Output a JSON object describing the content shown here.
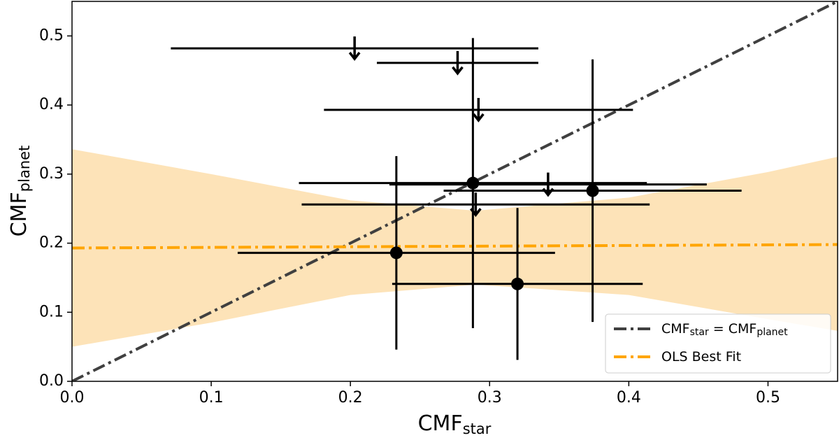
{
  "chart_data": {
    "type": "scatter",
    "x_label": [
      "CMF",
      "star"
    ],
    "y_label": [
      "CMF",
      "planet"
    ],
    "xlim": [
      0,
      0.55
    ],
    "ylim": [
      0,
      0.55
    ],
    "xticks": [
      {
        "value": 0,
        "label": "0.0"
      },
      0.1,
      0.2,
      0.3,
      0.4,
      0.5
    ],
    "yticks": [
      {
        "value": 0,
        "label": "0.0"
      },
      0.1,
      0.2,
      0.3,
      0.4,
      0.5
    ],
    "legend": "lower right",
    "series": [
      {
        "name": [
          "CMF",
          "star",
          " = CMF",
          "planet"
        ],
        "type": "line",
        "color": "#404040",
        "x": [
          0,
          0.55
        ],
        "values": [
          0,
          0.55
        ]
      },
      {
        "name": [
          "OLS Best Fit"
        ],
        "type": "line",
        "color": "#ffa500",
        "x": [
          0,
          0.55
        ],
        "values": [
          0.193,
          0.198
        ],
        "band_color": "#fde3b8",
        "band_x": [
          0,
          0.1,
          0.2,
          0.29,
          0.4,
          0.5,
          0.55
        ],
        "band_upper": [
          0.336,
          0.3,
          0.262,
          0.247,
          0.266,
          0.303,
          0.325
        ],
        "band_lower": [
          0.05,
          0.085,
          0.125,
          0.14,
          0.125,
          0.09,
          0.073
        ]
      },
      {
        "type": "errorbar",
        "color": "#000000",
        "x": [
          0.288,
          0.374,
          0.233,
          0.32
        ],
        "values": [
          0.287,
          0.276,
          0.186,
          0.141
        ],
        "xerr": [
          0.125,
          0.107,
          0.114,
          0.09
        ],
        "yerr": [
          0.21,
          0.19,
          0.14,
          0.11
        ]
      },
      {
        "type": "upper_limit",
        "color": "#000000",
        "x": [
          0.203,
          0.277,
          0.292,
          0.342,
          0.29
        ],
        "values": [
          0.482,
          0.461,
          0.393,
          0.285,
          0.256
        ],
        "xerr": [
          0.132,
          0.058,
          0.111,
          0.114,
          0.125
        ]
      }
    ]
  }
}
